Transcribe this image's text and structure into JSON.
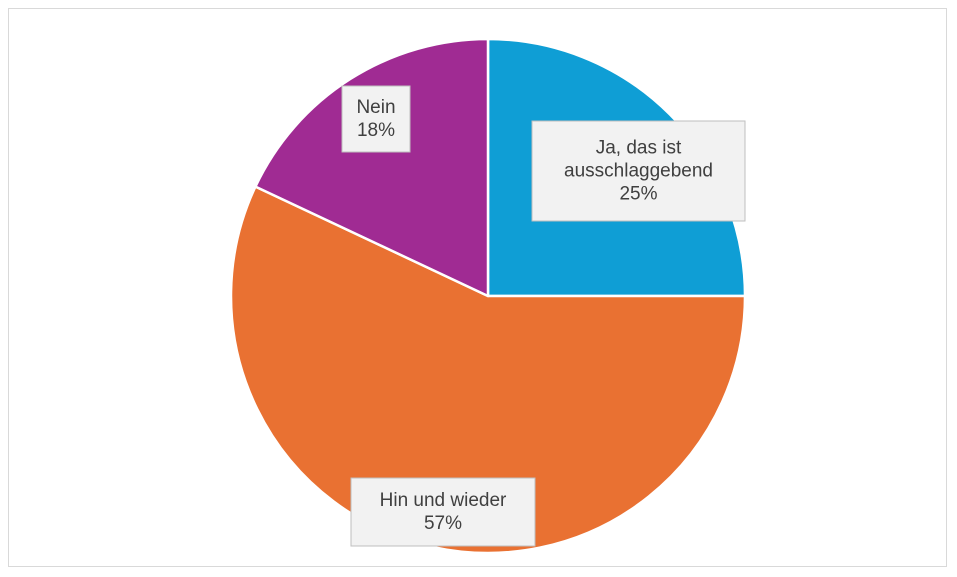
{
  "chart_data": {
    "type": "pie",
    "title": "",
    "slices": [
      {
        "label_lines": [
          "Ja, das ist",
          "ausschlaggebend"
        ],
        "percent_label": "25%",
        "value": 25,
        "color": "#0f9ed5"
      },
      {
        "label_lines": [
          "Hin und wieder"
        ],
        "percent_label": "57%",
        "value": 57,
        "color": "#e97132"
      },
      {
        "label_lines": [
          "Nein"
        ],
        "percent_label": "18%",
        "value": 18,
        "color": "#a02b93"
      }
    ],
    "start_angle_deg": 0,
    "direction": "clockwise",
    "legend": "none",
    "data_labels": "inside, boxed, category and percentage"
  }
}
